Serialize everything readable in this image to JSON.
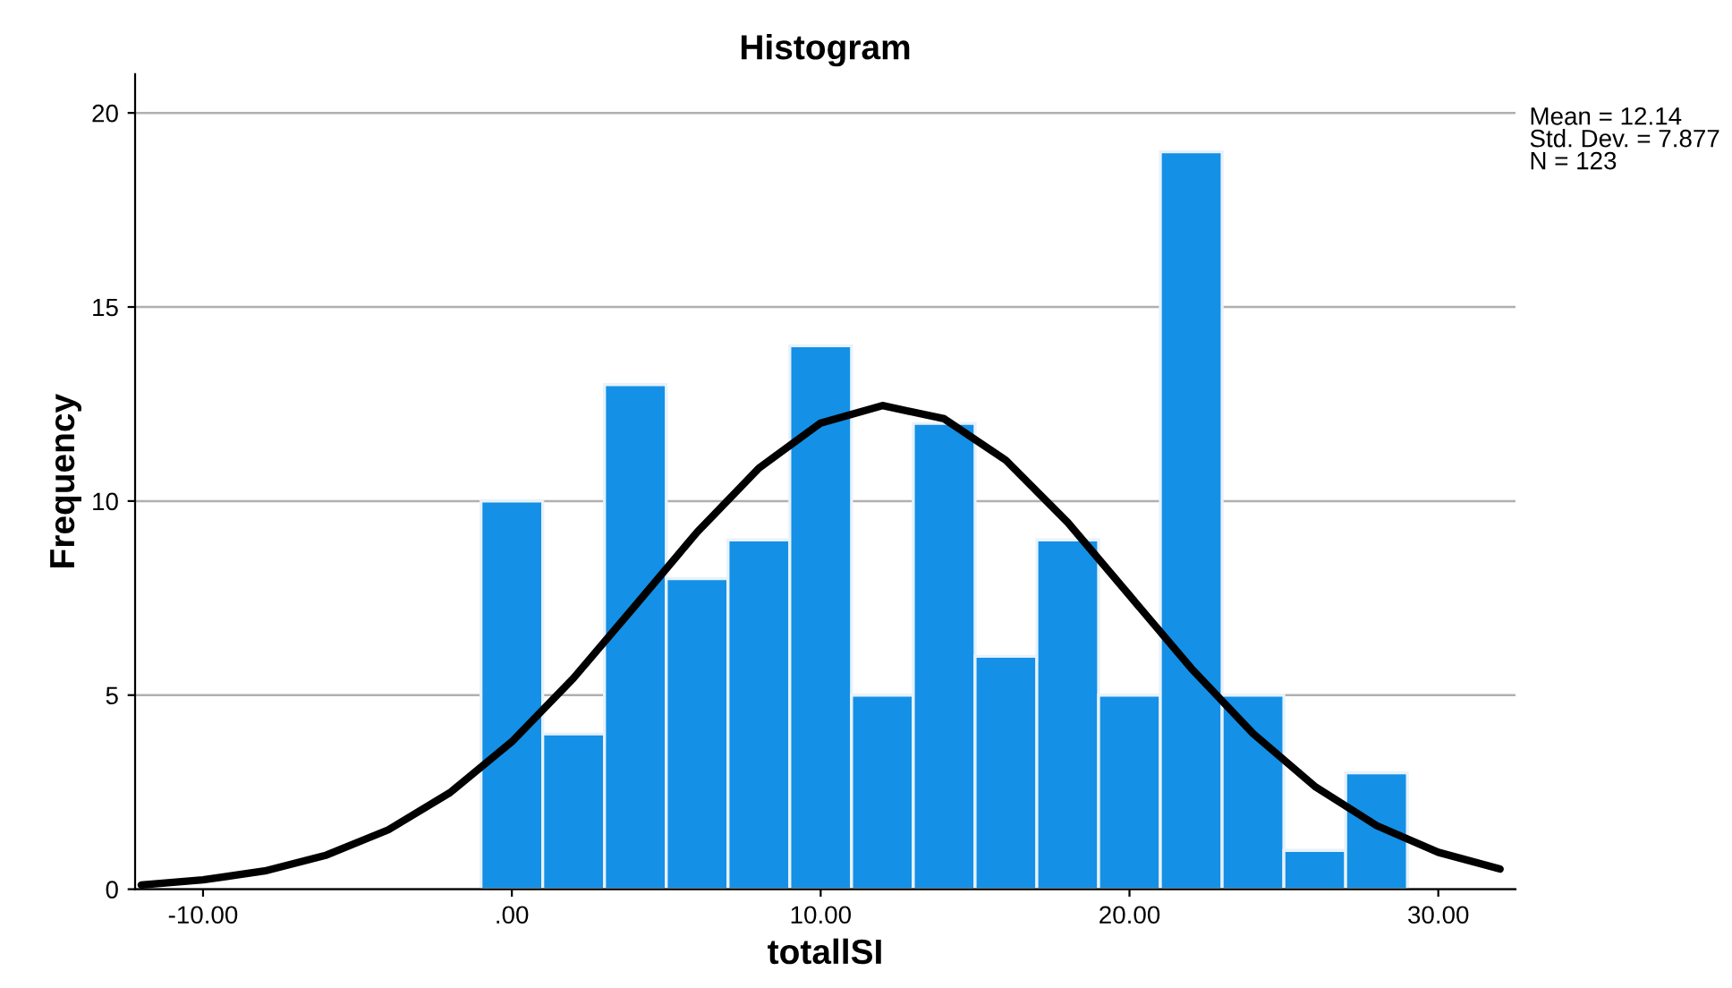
{
  "chart_data": [
    {
      "type": "histogram",
      "title": "Histogram",
      "xlabel": "totallSI",
      "ylabel": "Frequency",
      "bins": [
        -1,
        1,
        3,
        5,
        7,
        9,
        11,
        13,
        15,
        17,
        19,
        21,
        23,
        25,
        27,
        29
      ],
      "values": [
        10,
        4,
        13,
        8,
        9,
        14,
        5,
        12,
        6,
        9,
        5,
        19,
        5,
        1,
        3
      ],
      "color": "#1490e6",
      "series": [
        {
          "type": "line",
          "color": "#000000",
          "x": [
            -12,
            -10,
            -8,
            -6,
            -4,
            -2,
            0,
            2,
            4,
            6,
            8,
            10,
            12,
            14,
            16,
            18,
            20,
            22,
            24,
            26,
            28,
            30,
            32
          ],
          "values": [
            0.11,
            0.24,
            0.47,
            0.88,
            1.53,
            2.49,
            3.8,
            5.44,
            7.31,
            9.2,
            10.85,
            12.01,
            12.46,
            12.12,
            11.05,
            9.45,
            7.57,
            5.69,
            4.01,
            2.65,
            1.64,
            0.95,
            0.52
          ]
        }
      ],
      "xlim": [
        -12.2,
        32.5
      ],
      "ylim": [
        0,
        21
      ],
      "xticks": [
        {
          "value": -10,
          "label": "-10.00"
        },
        {
          "value": 0,
          "label": ".00"
        },
        {
          "value": 10,
          "label": "10.00"
        },
        {
          "value": 20,
          "label": "20.00"
        },
        {
          "value": 30,
          "label": "30.00"
        }
      ],
      "yticks": [
        0,
        5,
        10,
        15,
        20
      ],
      "grid": "y",
      "annotations": [
        "Mean = 12.14\nStd. Dev. = 7.877\nN = 123"
      ]
    }
  ]
}
